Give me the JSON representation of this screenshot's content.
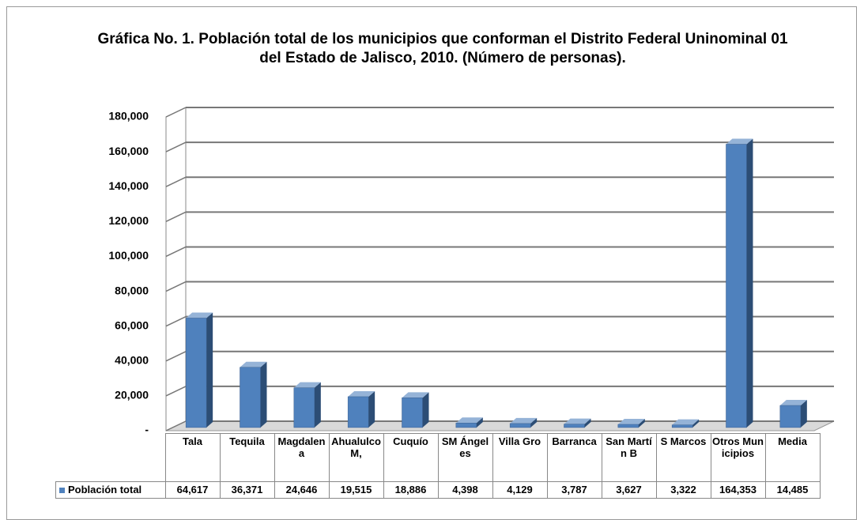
{
  "chart_data": {
    "type": "bar",
    "title": "Gráfica No. 1. Población total de los municipios que conforman el Distrito Federal Uninominal 01 del Estado de Jalisco, 2010. (Número de personas).",
    "categories": [
      "Tala",
      "Tequila",
      "Magdalena",
      "Ahualulco M,",
      "Cuquío",
      "SM Ángeles",
      "Villa Gro",
      "Barranca",
      "San Martín B",
      "S Marcos",
      "Otros Municipios",
      "Media"
    ],
    "series": [
      {
        "name": "Población total",
        "color": "#4f81bd",
        "values": [
          64617,
          36371,
          24646,
          19515,
          18886,
          4398,
          4129,
          3787,
          3627,
          3322,
          164353,
          14485
        ],
        "value_labels": [
          "64,617",
          "36,371",
          "24,646",
          "19,515",
          "18,886",
          "4,398",
          "4,129",
          "3,787",
          "3,627",
          "3,322",
          "164,353",
          "14,485"
        ]
      }
    ],
    "ylim": [
      0,
      180000
    ],
    "yticks": [
      {
        "value": 0,
        "label": "-"
      },
      {
        "value": 20000,
        "label": "20,000"
      },
      {
        "value": 40000,
        "label": "40,000"
      },
      {
        "value": 60000,
        "label": "60,000"
      },
      {
        "value": 80000,
        "label": "80,000"
      },
      {
        "value": 100000,
        "label": "100,000"
      },
      {
        "value": 120000,
        "label": "120,000"
      },
      {
        "value": 140000,
        "label": "140,000"
      },
      {
        "value": 160000,
        "label": "160,000"
      },
      {
        "value": 180000,
        "label": "180,000"
      }
    ],
    "grid": true
  }
}
